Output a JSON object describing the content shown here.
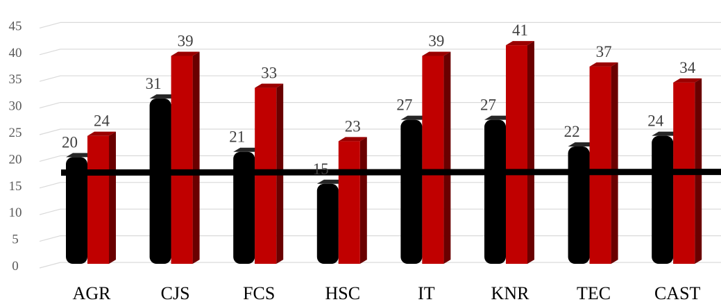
{
  "chart_data": {
    "type": "bar",
    "title": "",
    "xlabel": "",
    "ylabel": "",
    "categories": [
      "AGR",
      "CJS",
      "FCS",
      "HSC",
      "IT",
      "KNR",
      "TEC",
      "CAST"
    ],
    "series": [
      {
        "values": [
          20,
          31,
          21,
          15,
          27,
          27,
          22,
          24
        ],
        "color": "#000000"
      },
      {
        "values": [
          24,
          39,
          33,
          23,
          39,
          41,
          37,
          34
        ],
        "color": "#c00000"
      }
    ],
    "reference_line": {
      "value": 17.5,
      "color": "#000000"
    },
    "ylim": [
      0,
      45
    ],
    "yticks": [
      0,
      5,
      10,
      15,
      20,
      25,
      30,
      35,
      40,
      45
    ],
    "grid": true,
    "legend": "none",
    "style": "3d-columns"
  }
}
